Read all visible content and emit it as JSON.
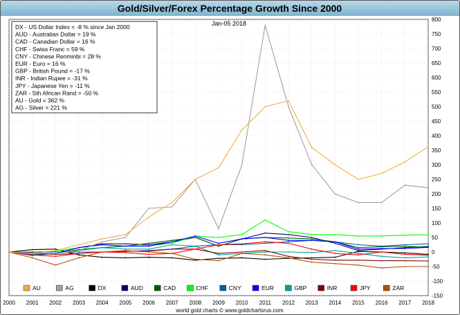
{
  "chart_data": {
    "type": "line",
    "title": "Gold/Silver/Forex Percentage Growth Since 2000",
    "date_label": "Jan-05  2018",
    "footer": "world gold charts © www.goldchartsrus.com",
    "xlabel": "",
    "ylabel": "",
    "xlim": [
      2000,
      2018
    ],
    "ylim": [
      -150,
      800
    ],
    "x_ticks": [
      "2000",
      "2001",
      "2002",
      "2003",
      "2004",
      "2005",
      "2006",
      "2007",
      "2008",
      "2009",
      "2010",
      "2011",
      "2012",
      "2013",
      "2014",
      "2015",
      "2016",
      "2017",
      "2018"
    ],
    "y_ticks": [
      "-150",
      "-100",
      "-50",
      "0",
      "50",
      "100",
      "150",
      "200",
      "250",
      "300",
      "350",
      "400",
      "450",
      "500",
      "550",
      "600",
      "650",
      "700",
      "750",
      "800"
    ],
    "info_box": [
      "DX - US Dollar Index = -8 % since Jan 2000",
      "AUD - Australian Dollar = 19 %",
      "CAD - Canadian Dollar = 16 %",
      "CHF - Swiss Franc = 59 %",
      "CNY - Chinese Renminbi = 28 %",
      "EUR - Euro = 16 %",
      "GBP - British Pound = -17 %",
      "INR - Indian Rupee = -31 %",
      "JPY - Japanese Yen = -11 %",
      "ZAR - Sth African Rand = -50 %",
      "AU - Gold = 362 %",
      "AG - Silver = 221 %"
    ],
    "x": [
      2000,
      2001,
      2002,
      2003,
      2004,
      2005,
      2006,
      2007,
      2008,
      2009,
      2010,
      2011,
      2012,
      2013,
      2014,
      2015,
      2016,
      2017,
      2018
    ],
    "series": [
      {
        "name": "AU",
        "color": "#f0b040",
        "values": [
          0,
          -5,
          5,
          25,
          45,
          60,
          120,
          170,
          250,
          290,
          420,
          500,
          520,
          360,
          300,
          250,
          270,
          310,
          362
        ]
      },
      {
        "name": "AG",
        "color": "#a0a0a0",
        "values": [
          0,
          -5,
          -5,
          5,
          35,
          50,
          150,
          155,
          250,
          80,
          300,
          780,
          500,
          300,
          200,
          170,
          170,
          230,
          221
        ]
      },
      {
        "name": "DX",
        "color": "#000000",
        "values": [
          0,
          8,
          10,
          -10,
          -18,
          -20,
          -18,
          -20,
          -28,
          -22,
          -20,
          -25,
          -22,
          -20,
          -18,
          2,
          0,
          -3,
          -8
        ]
      },
      {
        "name": "AUD",
        "color": "#000080",
        "values": [
          0,
          -10,
          -5,
          15,
          28,
          28,
          25,
          35,
          50,
          20,
          45,
          65,
          60,
          50,
          30,
          5,
          10,
          15,
          19
        ]
      },
      {
        "name": "CAD",
        "color": "#006000",
        "values": [
          0,
          -3,
          -5,
          8,
          15,
          20,
          30,
          40,
          50,
          20,
          45,
          50,
          48,
          45,
          35,
          15,
          18,
          20,
          16
        ]
      },
      {
        "name": "CHF",
        "color": "#00ff00",
        "values": [
          0,
          0,
          3,
          15,
          25,
          20,
          22,
          30,
          55,
          50,
          60,
          110,
          70,
          60,
          60,
          55,
          55,
          58,
          59
        ]
      },
      {
        "name": "CNY",
        "color": "#0060a0",
        "values": [
          0,
          0,
          0,
          0,
          0,
          2,
          5,
          10,
          20,
          25,
          25,
          30,
          35,
          40,
          35,
          25,
          20,
          25,
          28
        ]
      },
      {
        "name": "EUR",
        "color": "#0000ff",
        "values": [
          0,
          -12,
          -5,
          15,
          25,
          20,
          20,
          35,
          55,
          30,
          45,
          50,
          40,
          40,
          35,
          10,
          12,
          12,
          16
        ]
      },
      {
        "name": "GBP",
        "color": "#00a0a0",
        "values": [
          0,
          -8,
          -5,
          5,
          15,
          10,
          10,
          25,
          20,
          -10,
          -5,
          0,
          0,
          -2,
          5,
          -5,
          -15,
          -20,
          -17
        ]
      },
      {
        "name": "INR",
        "color": "#800000",
        "values": [
          0,
          -5,
          -8,
          -5,
          0,
          3,
          3,
          10,
          10,
          -5,
          0,
          5,
          -15,
          -25,
          -28,
          -28,
          -30,
          -30,
          -31
        ]
      },
      {
        "name": "JPY",
        "color": "#ff0000",
        "values": [
          0,
          -10,
          -15,
          -5,
          0,
          -2,
          -8,
          -5,
          10,
          25,
          28,
          35,
          30,
          10,
          -5,
          -10,
          0,
          -8,
          -11
        ]
      },
      {
        "name": "ZAR",
        "color": "#b05000",
        "values": [
          0,
          -20,
          -45,
          -20,
          0,
          5,
          0,
          -5,
          -25,
          -30,
          -5,
          -10,
          -20,
          -35,
          -40,
          -45,
          -55,
          -50,
          -50
        ]
      }
    ]
  }
}
